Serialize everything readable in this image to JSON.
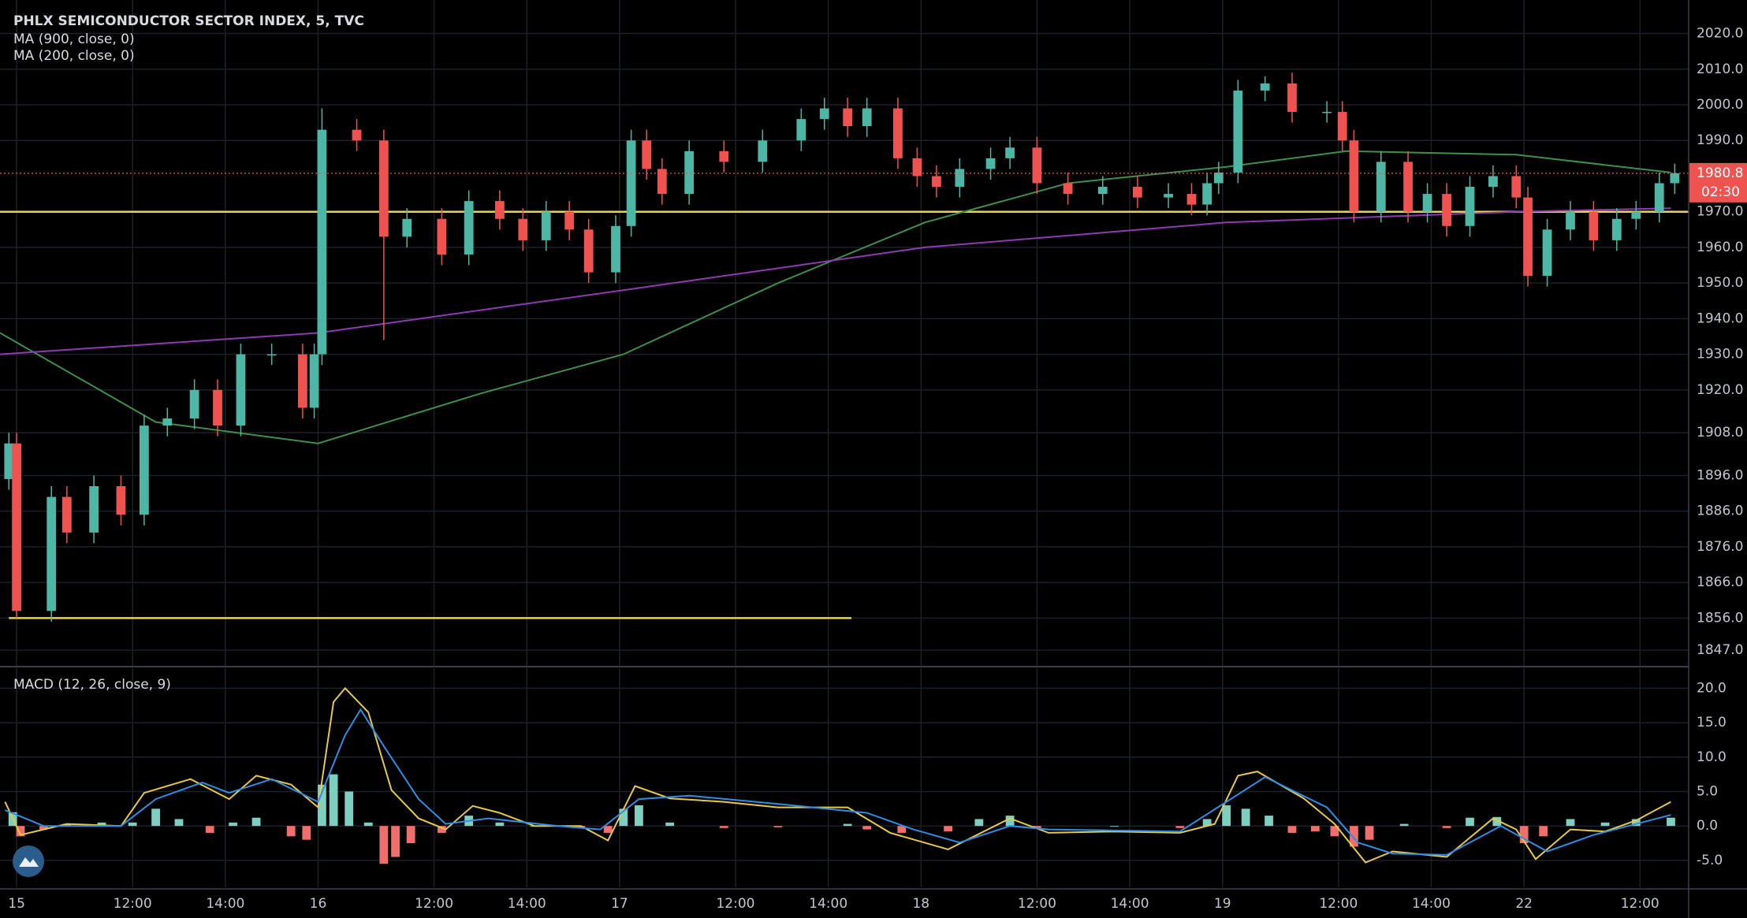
{
  "chart_data": [
    {
      "type": "candlestick",
      "title": "PHLX SEMICONDUCTOR SECTOR INDEX, 5, TVC",
      "up_color": "#4db6a5",
      "down_color": "#ef5350",
      "x": [
        0,
        2,
        11,
        15,
        22,
        29,
        35,
        41,
        48,
        54,
        60,
        68,
        76,
        79,
        81,
        90,
        97,
        103,
        112,
        119,
        127,
        133,
        139,
        145,
        150,
        157,
        161,
        165,
        169,
        176,
        185,
        195,
        205,
        211,
        217,
        222,
        230,
        235,
        240,
        246,
        254,
        259,
        266,
        274,
        283,
        292,
        300,
        306,
        310,
        313,
        318,
        325,
        332,
        341,
        345,
        348,
        355,
        362,
        367,
        372,
        378,
        384,
        390,
        393,
        398,
        404,
        410,
        416,
        421,
        427,
        431
      ],
      "open": [
        1895,
        1905,
        1858,
        1890,
        1880,
        1893,
        1885,
        1910,
        1912,
        1920,
        1910,
        1930,
        1930,
        1915,
        1930,
        1993,
        1990,
        1963,
        1968,
        1958,
        1973,
        1968,
        1962,
        1970,
        1965,
        1953,
        1966,
        1990,
        1982,
        1975,
        1987,
        1984,
        1990,
        1996,
        1999,
        1994,
        1999,
        1985,
        1980,
        1977,
        1982,
        1985,
        1988,
        1978,
        1975,
        1977,
        1974,
        1975,
        1972,
        1978,
        1981,
        2004,
        2006,
        1998,
        1998,
        1990,
        1970,
        1984,
        1970,
        1975,
        1966,
        1977,
        1980,
        1974,
        1952,
        1965,
        1970,
        1962,
        1968,
        1970,
        1978
      ],
      "high": [
        1908,
        1908,
        1893,
        1893,
        1896,
        1896,
        1913,
        1915,
        1923,
        1923,
        1933,
        1933,
        1933,
        1933,
        1999,
        1996,
        1993,
        1971,
        1971,
        1976,
        1976,
        1971,
        1973,
        1973,
        1968,
        1969,
        1993,
        1993,
        1985,
        1990,
        1990,
        1993,
        1999,
        2002,
        2002,
        2002,
        2002,
        1988,
        1983,
        1985,
        1988,
        1991,
        1991,
        1981,
        1980,
        1980,
        1978,
        1978,
        1981,
        1984,
        2007,
        2008,
        2009,
        2001,
        2001,
        1993,
        1987,
        1987,
        1978,
        1978,
        1980,
        1983,
        1983,
        1977,
        1968,
        1973,
        1973,
        1971,
        1973,
        1981,
        1983.5
      ],
      "low": [
        1892,
        1856,
        1855,
        1877,
        1877,
        1882,
        1882,
        1907,
        1909,
        1907,
        1907,
        1927,
        1912,
        1912,
        1927,
        1987,
        1934,
        1960,
        1955,
        1955,
        1965,
        1959,
        1959,
        1962,
        1950,
        1950,
        1963,
        1979,
        1972,
        1972,
        1981,
        1981,
        1987,
        1993,
        1991,
        1991,
        1982,
        1977,
        1974,
        1974,
        1979,
        1982,
        1975,
        1972,
        1972,
        1971,
        1971,
        1969,
        1969,
        1975,
        1978,
        2001,
        1995,
        1995,
        1987,
        1967,
        1967,
        1967,
        1967,
        1963,
        1963,
        1974,
        1971,
        1949,
        1949,
        1962,
        1959,
        1959,
        1965,
        1967,
        1975
      ],
      "close": [
        1905,
        1858,
        1890,
        1880,
        1893,
        1885,
        1910,
        1912,
        1920,
        1910,
        1930,
        1930,
        1915,
        1930,
        1993,
        1990,
        1963,
        1968,
        1958,
        1973,
        1968,
        1962,
        1970,
        1965,
        1953,
        1966,
        1990,
        1982,
        1975,
        1987,
        1984,
        1990,
        1996,
        1999,
        1994,
        1999,
        1985,
        1980,
        1977,
        1982,
        1985,
        1988,
        1978,
        1975,
        1977,
        1974,
        1975,
        1972,
        1978,
        1981,
        2004,
        2006,
        1998,
        1998,
        1990,
        1970,
        1984,
        1970,
        1975,
        1966,
        1977,
        1980,
        1974,
        1952,
        1965,
        1970,
        1962,
        1968,
        1970,
        1978,
        1980.8
      ],
      "series": [
        {
          "name": "MA (900, close, 0)",
          "color": "#3f8f4c",
          "x": [
            -2.3,
            38,
            80,
            122,
            159,
            199,
            237,
            274,
            315,
            346,
            390,
            430
          ],
          "values": [
            1936,
            1911,
            1905,
            1919,
            1930,
            1950,
            1967,
            1978,
            1982.6,
            1987,
            1986,
            1981
          ]
        },
        {
          "name": "MA (200, close, 0)",
          "color": "#8e3ab3",
          "x": [
            -2.3,
            80,
            159,
            237,
            315,
            390,
            430
          ],
          "values": [
            1930,
            1936,
            1948,
            1960,
            1967,
            1970,
            1971
          ]
        }
      ],
      "hlines": [
        {
          "value": 1970,
          "color": "#e8d44d",
          "x": [
            -2.3,
            434.6
          ]
        },
        {
          "value": 1856,
          "color": "#e8d44d",
          "x": [
            0,
            218
          ]
        }
      ],
      "last_price": {
        "value": 1980.8,
        "label": "1980.8",
        "countdown": "02:30",
        "color": "#ef5350"
      },
      "xlim": [
        -2.3,
        434.6
      ],
      "xticks": [
        {
          "value": 2,
          "label": "15"
        },
        {
          "value": 32,
          "label": "12:00"
        },
        {
          "value": 56,
          "label": "14:00"
        },
        {
          "value": 80,
          "label": "16"
        },
        {
          "value": 110,
          "label": "12:00"
        },
        {
          "value": 134,
          "label": "14:00"
        },
        {
          "value": 158,
          "label": "17"
        },
        {
          "value": 188,
          "label": "12:00"
        },
        {
          "value": 212,
          "label": "14:00"
        },
        {
          "value": 236,
          "label": "18"
        },
        {
          "value": 266,
          "label": "12:00"
        },
        {
          "value": 290,
          "label": "14:00"
        },
        {
          "value": 314,
          "label": "19"
        },
        {
          "value": 344,
          "label": "12:00"
        },
        {
          "value": 368,
          "label": "14:00"
        },
        {
          "value": 392,
          "label": "22"
        },
        {
          "value": 422,
          "label": "12:00"
        }
      ],
      "ylim": [
        1842.6,
        2029.4
      ],
      "yticks": [
        {
          "value": 2020,
          "label": "2020.0"
        },
        {
          "value": 2010,
          "label": "2010.0"
        },
        {
          "value": 2000,
          "label": "2000.0"
        },
        {
          "value": 1990,
          "label": "1990.0"
        },
        {
          "value": 1970,
          "label": "1970.0"
        },
        {
          "value": 1960,
          "label": "1960.0"
        },
        {
          "value": 1950,
          "label": "1950.0"
        },
        {
          "value": 1940,
          "label": "1940.0"
        },
        {
          "value": 1930,
          "label": "1930.0"
        },
        {
          "value": 1920,
          "label": "1920.0"
        },
        {
          "value": 1908,
          "label": "1908.0"
        },
        {
          "value": 1896,
          "label": "1896.0"
        },
        {
          "value": 1886,
          "label": "1886.0"
        },
        {
          "value": 1876,
          "label": "1876.0"
        },
        {
          "value": 1866,
          "label": "1866.0"
        },
        {
          "value": 1856,
          "label": "1856.0"
        },
        {
          "value": 1847,
          "label": "1847.0"
        }
      ],
      "grid": true
    },
    {
      "type": "macd",
      "title": "MACD (12, 26, close, 9)",
      "series": [
        {
          "color": "#e6c84a",
          "x": [
            -1,
            3,
            15,
            29,
            35,
            47,
            57,
            64,
            73,
            80,
            84,
            87,
            93,
            99,
            106,
            113,
            120,
            127,
            136,
            148,
            155,
            162,
            171,
            185,
            199,
            217,
            228,
            243,
            259,
            269,
            286,
            303,
            312,
            318,
            323,
            335,
            343,
            351,
            358,
            372,
            384,
            390,
            395,
            404,
            413,
            421,
            430
          ],
          "values": [
            3.5,
            -1.3,
            0.3,
            0,
            4.8,
            6.8,
            3.9,
            7.3,
            6,
            2.7,
            18,
            20,
            16.5,
            5.2,
            1.1,
            -0.5,
            2.9,
            1.9,
            0,
            0,
            -2.1,
            5.8,
            4,
            3.5,
            2.7,
            2.7,
            -1,
            -3.4,
            1.1,
            -1,
            -0.8,
            -1,
            0.3,
            7.3,
            7.9,
            4,
            0.3,
            -5.3,
            -3.7,
            -4.5,
            1.1,
            -0.5,
            -4.8,
            -0.5,
            -0.8,
            0.8,
            3.5
          ]
        },
        {
          "color": "#2f8de4",
          "x": [
            -1,
            9,
            29,
            38,
            50,
            57,
            68,
            80,
            87,
            91,
            97,
            106,
            113,
            124,
            142,
            153,
            163,
            176,
            199,
            222,
            234,
            246,
            259,
            269,
            303,
            315,
            325,
            341,
            349,
            358,
            372,
            386,
            398,
            410,
            430
          ],
          "values": [
            2.3,
            0,
            0,
            3.9,
            6.3,
            4.8,
            6.8,
            3.5,
            13.2,
            16.9,
            11.6,
            3.9,
            0.3,
            1.1,
            0,
            -0.5,
            3.9,
            4.4,
            3.2,
            1.9,
            -0.5,
            -2.4,
            0,
            -0.5,
            -0.8,
            3.5,
            7.1,
            2.7,
            -2.4,
            -4,
            -4.2,
            0,
            -3.7,
            -1.3,
            1.6
          ]
        }
      ],
      "histogram": {
        "up_color": "#7fcfc0",
        "down_color": "#ef6f6c",
        "x": [
          1,
          3,
          9,
          15,
          24,
          32,
          38,
          44,
          52,
          58,
          64,
          73,
          77,
          81,
          84,
          88,
          93,
          97,
          100,
          104,
          112,
          119,
          127,
          136,
          148,
          155,
          159,
          163,
          171,
          185,
          199,
          217,
          222,
          231,
          243,
          251,
          259,
          266,
          286,
          303,
          310,
          315,
          320,
          326,
          332,
          338,
          343,
          348,
          352,
          361,
          372,
          378,
          385,
          392,
          397,
          404,
          413,
          421,
          430
        ],
        "values": [
          2,
          -1.5,
          -0.5,
          0.3,
          0.5,
          0.5,
          2.5,
          1,
          -1,
          0.5,
          1.2,
          -1.5,
          -2,
          6,
          7.5,
          5,
          0.5,
          -5.5,
          -4.5,
          -2.5,
          -1,
          1.5,
          0.5,
          0,
          -0.3,
          -1,
          2.5,
          3,
          0.5,
          -0.3,
          -0.2,
          0.3,
          -0.5,
          -1,
          -0.8,
          1,
          1.5,
          -0.3,
          0,
          -0.3,
          1,
          3,
          2.5,
          1.5,
          -1,
          -0.8,
          -1.5,
          -3,
          -2,
          0.3,
          -0.3,
          1.2,
          1.3,
          -2.5,
          -1.5,
          1,
          0.5,
          1,
          1.2
        ]
      },
      "ylim": [
        -8.9,
        22.9
      ],
      "yticks": [
        {
          "value": 20,
          "label": "20.0"
        },
        {
          "value": 15,
          "label": "15.0"
        },
        {
          "value": 10,
          "label": "10.0"
        },
        {
          "value": 5,
          "label": "5.0"
        },
        {
          "value": 0,
          "label": "0.0"
        },
        {
          "value": -5,
          "label": "-5.0"
        }
      ],
      "grid": true
    }
  ]
}
